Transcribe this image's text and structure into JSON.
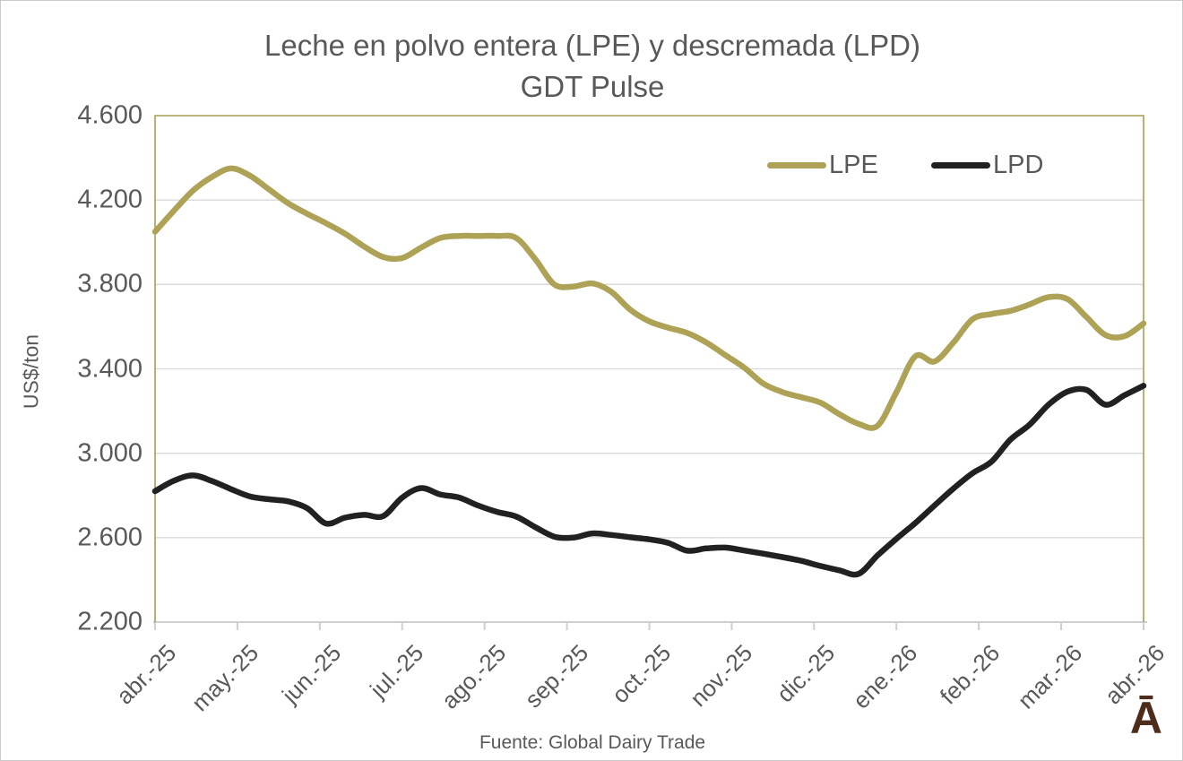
{
  "title": {
    "line1": "Leche en polvo entera (LPE) y descremada (LPD)",
    "line2": "GDT Pulse"
  },
  "legend": {
    "items": [
      {
        "label": "LPE",
        "color": "#AEA257"
      },
      {
        "label": "LPD",
        "color": "#212121"
      }
    ]
  },
  "footer": {
    "source": "Fuente: Global Dairy Trade"
  },
  "logo": {
    "glyph": "Ā",
    "color": "#4E2C1B"
  },
  "colors": {
    "text": "#595959",
    "gridline": "#D9D9D9",
    "axis_line": "#CFCFCF",
    "plot_border": "#A79F51",
    "background": "#FFFFFF"
  },
  "chart_data": {
    "type": "line",
    "title": "Leche en polvo entera (LPE) y descremada (LPD) — GDT Pulse",
    "xlabel": "",
    "ylabel": "US$/ton",
    "ylim": [
      2200,
      4600
    ],
    "grid": "horizontal",
    "legend_position": "top-right-inside",
    "y_ticks": [
      {
        "value": 4600,
        "label": "4.600"
      },
      {
        "value": 4200,
        "label": "4.200"
      },
      {
        "value": 3800,
        "label": "3.800"
      },
      {
        "value": 3400,
        "label": "3.400"
      },
      {
        "value": 3000,
        "label": "3.000"
      },
      {
        "value": 2600,
        "label": "2.600"
      },
      {
        "value": 2200,
        "label": "2.200"
      }
    ],
    "x_tick_labels": [
      "abr.-25",
      "may.-25",
      "jun.-25",
      "jul.-25",
      "ago.-25",
      "sep.-25",
      "oct.-25",
      "nov.-25",
      "dic.-25",
      "ene.-26",
      "feb.-26",
      "mar.-26",
      "abr.-26"
    ],
    "x_resolution": "weekly",
    "series": [
      {
        "name": "LPE",
        "color": "#AEA257",
        "values": [
          4050,
          4150,
          4245,
          4310,
          4350,
          4315,
          4250,
          4185,
          4135,
          4090,
          4040,
          3980,
          3930,
          3925,
          3975,
          4020,
          4030,
          4030,
          4030,
          4020,
          3920,
          3800,
          3790,
          3805,
          3765,
          3680,
          3625,
          3595,
          3570,
          3525,
          3465,
          3405,
          3330,
          3290,
          3265,
          3240,
          3185,
          3140,
          3130,
          3290,
          3460,
          3435,
          3525,
          3635,
          3660,
          3675,
          3705,
          3740,
          3730,
          3645,
          3560,
          3555,
          3615
        ]
      },
      {
        "name": "LPD",
        "color": "#212121",
        "values": [
          2820,
          2870,
          2895,
          2868,
          2830,
          2795,
          2782,
          2772,
          2740,
          2667,
          2695,
          2708,
          2702,
          2790,
          2835,
          2805,
          2790,
          2752,
          2722,
          2700,
          2650,
          2605,
          2600,
          2620,
          2613,
          2602,
          2592,
          2575,
          2538,
          2549,
          2553,
          2539,
          2524,
          2508,
          2490,
          2466,
          2445,
          2428,
          2515,
          2595,
          2670,
          2752,
          2833,
          2905,
          2960,
          3065,
          3135,
          3230,
          3292,
          3300,
          3230,
          3275,
          3320
        ]
      }
    ]
  }
}
